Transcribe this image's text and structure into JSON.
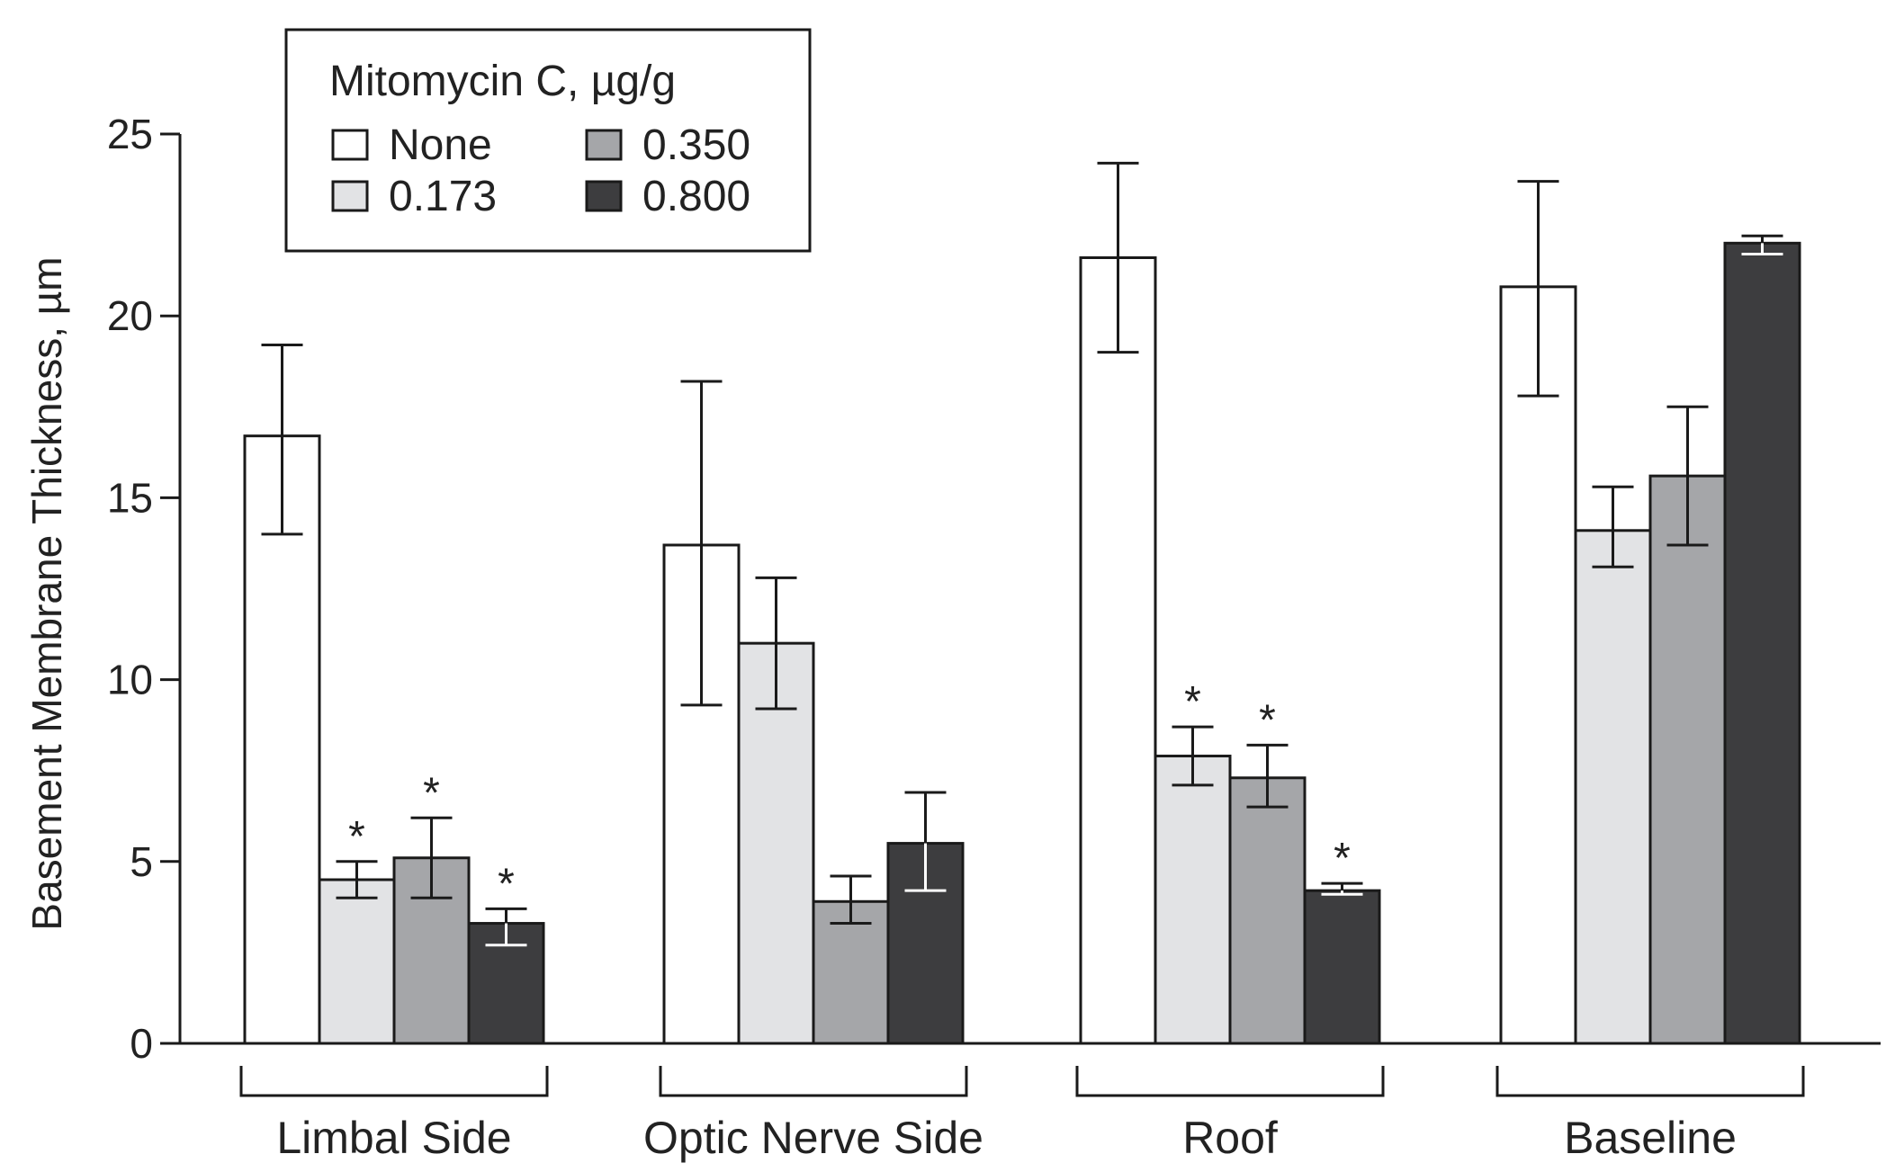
{
  "colors": {
    "none": "#ffffff",
    "c173": "#e2e3e5",
    "c350": "#a5a6a9",
    "c800": "#3d3d3f",
    "stroke": "#1a1a1a"
  },
  "chart_data": {
    "type": "bar",
    "title": "",
    "xlabel": "",
    "ylabel": "Basement Membrane Thickness, µm",
    "ylim": [
      0,
      25
    ],
    "yticks": [
      0,
      5,
      10,
      15,
      20,
      25
    ],
    "grid": false,
    "legend": {
      "title": "Mitomycin C, µg/g",
      "placement": "top-left"
    },
    "categories": [
      "Limbal Side",
      "Optic Nerve Side",
      "Roof",
      "Baseline"
    ],
    "series": [
      {
        "name": "None",
        "color_key": "none",
        "values": [
          16.7,
          13.7,
          21.6,
          20.8
        ],
        "err_low": [
          14.0,
          9.3,
          19.0,
          17.8
        ],
        "err_high": [
          19.2,
          18.2,
          24.2,
          23.7
        ],
        "significant": [
          false,
          false,
          false,
          false
        ]
      },
      {
        "name": "0.173",
        "color_key": "c173",
        "values": [
          4.5,
          11.0,
          7.9,
          14.1
        ],
        "err_low": [
          4.0,
          9.2,
          7.1,
          13.1
        ],
        "err_high": [
          5.0,
          12.8,
          8.7,
          15.3
        ],
        "significant": [
          true,
          false,
          true,
          false
        ]
      },
      {
        "name": "0.350",
        "color_key": "c350",
        "values": [
          5.1,
          3.9,
          7.3,
          15.6
        ],
        "err_low": [
          4.0,
          3.3,
          6.5,
          13.7
        ],
        "err_high": [
          6.2,
          4.6,
          8.2,
          17.5
        ],
        "significant": [
          true,
          false,
          true,
          false
        ]
      },
      {
        "name": "0.800",
        "color_key": "c800",
        "values": [
          3.3,
          5.5,
          4.2,
          22.0
        ],
        "err_low": [
          2.7,
          4.2,
          4.1,
          21.7
        ],
        "err_high": [
          3.7,
          6.9,
          4.4,
          22.2
        ],
        "significant": [
          true,
          false,
          true,
          false
        ]
      }
    ],
    "significance_marker": "*"
  }
}
